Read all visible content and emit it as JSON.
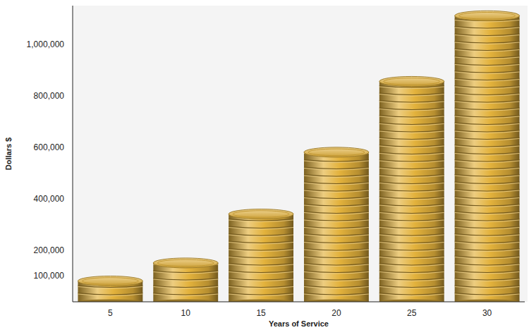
{
  "chart_data": {
    "type": "bar",
    "x_label": "Years of Service",
    "y_label": "Dollars $",
    "categories": [
      "5",
      "10",
      "15",
      "20",
      "25",
      "30"
    ],
    "values": [
      100000,
      170000,
      360000,
      600000,
      875000,
      1130000
    ],
    "color": "#e3b23c",
    "ylim": [
      0,
      1150000
    ],
    "yticks": [
      {
        "value": 100000,
        "label": "100,000"
      },
      {
        "value": 200000,
        "label": "200,000"
      },
      {
        "value": 400000,
        "label": "400,000"
      },
      {
        "value": 600000,
        "label": "600,000"
      },
      {
        "value": 800000,
        "label": "800,000"
      },
      {
        "value": 1000000,
        "label": "1,000,000"
      }
    ],
    "grid": false
  }
}
